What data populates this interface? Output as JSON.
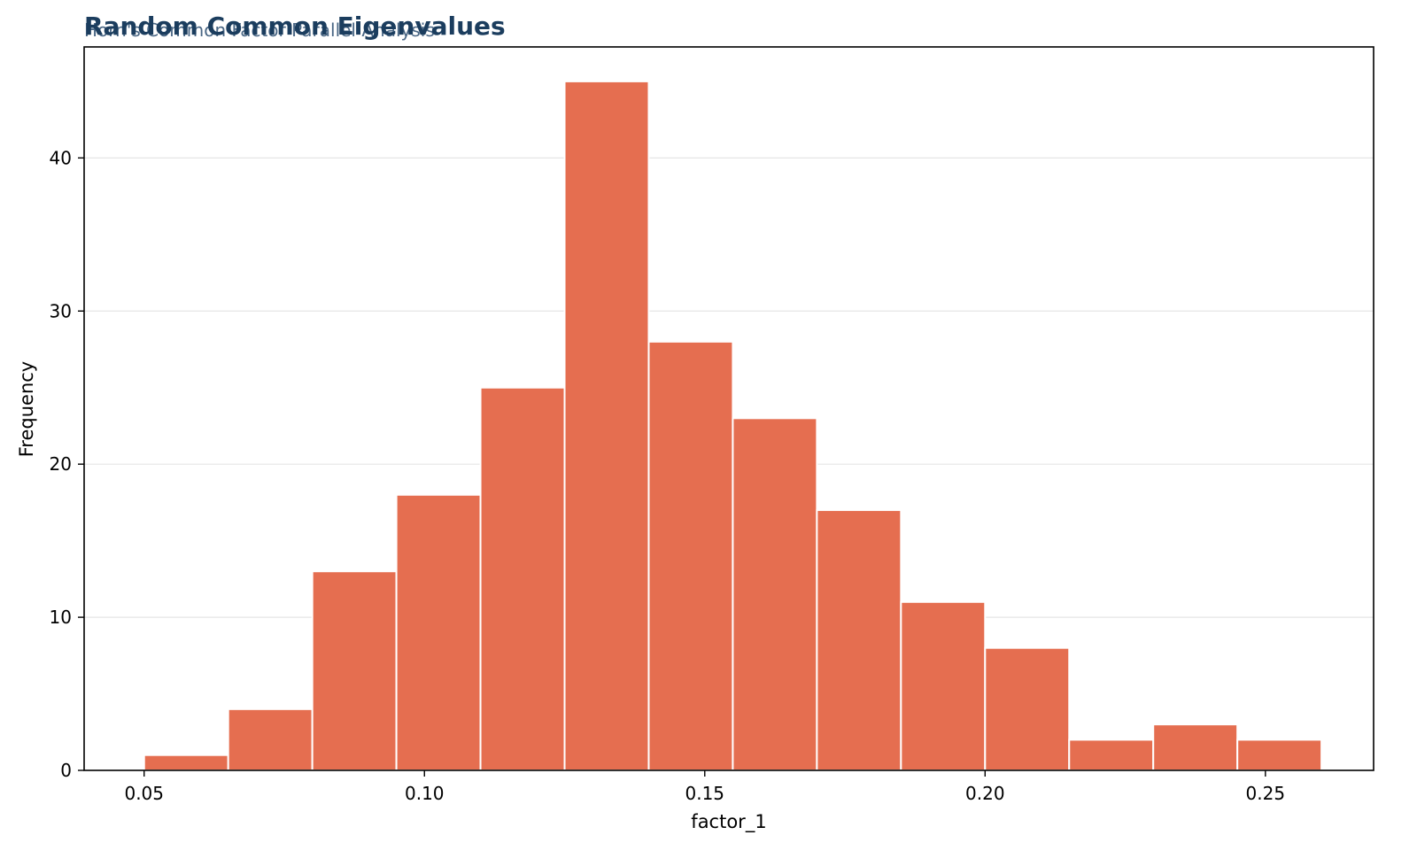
{
  "chart_data": {
    "type": "bar",
    "title": "Random Common Eigenvalues",
    "subtitle": "Horn's Common Factor Parallel Analysis",
    "xlabel": "factor_1",
    "ylabel": "Frequency",
    "xlim": [
      0.0393,
      0.2693
    ],
    "ylim": [
      0,
      47.25
    ],
    "xticks": [
      0.05,
      0.1,
      0.15,
      0.2,
      0.25
    ],
    "xtick_labels": [
      "0.05",
      "0.10",
      "0.15",
      "0.20",
      "0.25"
    ],
    "yticks": [
      0,
      10,
      20,
      30,
      40
    ],
    "ytick_labels": [
      "0",
      "10",
      "20",
      "30",
      "40"
    ],
    "bin_edges": [
      0.05,
      0.065,
      0.08,
      0.095,
      0.11,
      0.125,
      0.14,
      0.155,
      0.17,
      0.185,
      0.2,
      0.215,
      0.23,
      0.245,
      0.26
    ],
    "values": [
      1,
      4,
      13,
      18,
      25,
      45,
      28,
      23,
      17,
      11,
      8,
      2,
      3,
      2
    ],
    "grid": "y",
    "legend": "none",
    "colors": {
      "bar": "#e56e50",
      "bar_edge": "#ffffff",
      "title": "#1b3d5e",
      "subtitle": "#4a6785",
      "grid": "#e6e6e6",
      "axis": "#000000"
    }
  }
}
